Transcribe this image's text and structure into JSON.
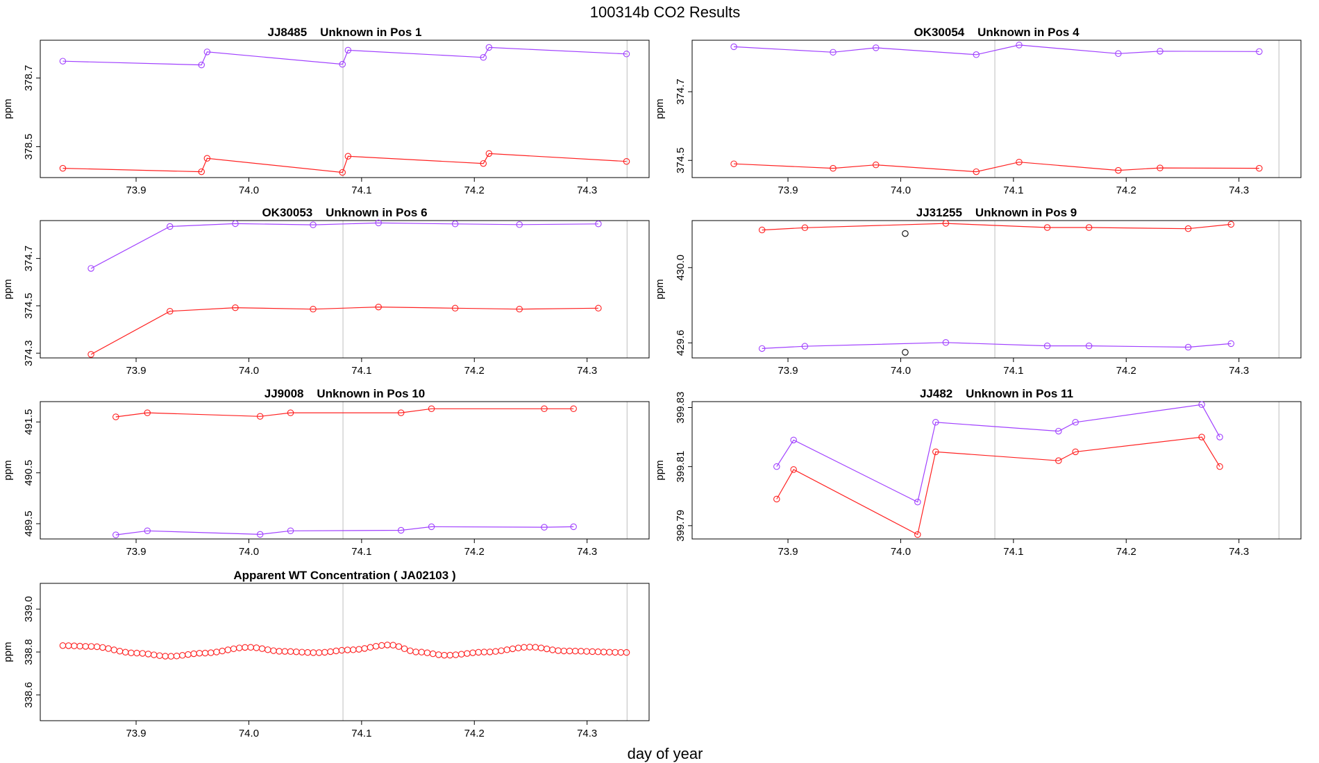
{
  "figure": {
    "title": "100314b  CO2 Results",
    "xlabel": "day of year",
    "colors": {
      "series_purple": "#a040ff",
      "series_red": "#ff2020",
      "outlier": "#000000",
      "ref_line": "#c8c8c8"
    }
  },
  "chart_data": [
    {
      "type": "line",
      "id": "p1",
      "title": "JJ8485    Unknown in Pos 1",
      "ylabel": "ppm",
      "xlim": [
        73.815,
        74.355
      ],
      "ylim": [
        378.41,
        378.81
      ],
      "xticks": [
        "73.9",
        "74.0",
        "74.1",
        "74.2",
        "74.3"
      ],
      "yticks": [
        "378.5",
        "378.7"
      ],
      "vlines": [
        74.0835,
        74.3355
      ],
      "series": [
        {
          "name": "purple",
          "color": "#a040ff",
          "x": [
            73.835,
            73.958,
            73.963,
            74.083,
            74.088,
            74.208,
            74.213,
            74.335
          ],
          "y": [
            378.749,
            378.738,
            378.776,
            378.74,
            378.781,
            378.76,
            378.789,
            378.77
          ]
        },
        {
          "name": "red",
          "color": "#ff2020",
          "x": [
            73.835,
            73.958,
            73.963,
            74.083,
            74.088,
            74.208,
            74.213,
            74.335
          ],
          "y": [
            378.437,
            378.427,
            378.466,
            378.425,
            378.472,
            378.451,
            378.48,
            378.457
          ]
        }
      ]
    },
    {
      "type": "line",
      "id": "p2",
      "title": "OK30054    Unknown in Pos 4",
      "ylabel": "ppm",
      "xlim": [
        73.815,
        74.355
      ],
      "ylim": [
        374.45,
        374.85
      ],
      "xticks": [
        "73.9",
        "74.0",
        "74.1",
        "74.2",
        "74.3"
      ],
      "yticks": [
        "374.5",
        "374.7"
      ],
      "vlines": [
        74.0835,
        74.3355
      ],
      "series": [
        {
          "name": "purple",
          "color": "#a040ff",
          "x": [
            73.852,
            73.94,
            73.978,
            74.067,
            74.105,
            74.193,
            74.23,
            74.318
          ],
          "y": [
            374.831,
            374.815,
            374.828,
            374.808,
            374.836,
            374.811,
            374.818,
            374.817
          ]
        },
        {
          "name": "red",
          "color": "#ff2020",
          "x": [
            73.852,
            73.94,
            73.978,
            74.067,
            74.105,
            74.193,
            74.23,
            74.318
          ],
          "y": [
            374.49,
            374.477,
            374.487,
            374.467,
            374.495,
            374.471,
            374.478,
            374.477
          ]
        }
      ]
    },
    {
      "type": "line",
      "id": "p3",
      "title": "OK30053    Unknown in Pos 6",
      "ylabel": "ppm",
      "xlim": [
        73.815,
        74.355
      ],
      "ylim": [
        374.28,
        374.86
      ],
      "xticks": [
        "73.9",
        "74.0",
        "74.1",
        "74.2",
        "74.3"
      ],
      "yticks": [
        "374.3",
        "374.5",
        "374.7"
      ],
      "vlines": [
        74.0835,
        74.3355
      ],
      "series": [
        {
          "name": "purple",
          "color": "#a040ff",
          "x": [
            73.86,
            73.93,
            73.988,
            74.057,
            74.115,
            74.183,
            74.24,
            74.31
          ],
          "y": [
            374.658,
            374.835,
            374.847,
            374.842,
            374.85,
            374.846,
            374.843,
            374.846
          ]
        },
        {
          "name": "red",
          "color": "#ff2020",
          "x": [
            73.86,
            73.93,
            73.988,
            74.057,
            74.115,
            74.183,
            74.24,
            74.31
          ],
          "y": [
            374.295,
            374.477,
            374.492,
            374.486,
            374.495,
            374.49,
            374.486,
            374.49
          ]
        }
      ]
    },
    {
      "type": "line",
      "id": "p4",
      "title": "JJ31255    Unknown in Pos 9",
      "ylabel": "ppm",
      "xlim": [
        73.815,
        74.355
      ],
      "ylim": [
        429.52,
        430.25
      ],
      "xticks": [
        "73.9",
        "74.0",
        "74.1",
        "74.2",
        "74.3"
      ],
      "yticks": [
        "429.6",
        "430.0"
      ],
      "vlines": [
        74.0835,
        74.3355
      ],
      "series": [
        {
          "name": "red",
          "color": "#ff2020",
          "x": [
            73.877,
            73.915,
            74.04,
            74.13,
            74.167,
            74.255,
            74.293
          ],
          "y": [
            430.2,
            430.212,
            430.235,
            430.213,
            430.213,
            430.207,
            430.23
          ]
        },
        {
          "name": "purple",
          "color": "#a040ff",
          "x": [
            73.877,
            73.915,
            74.04,
            74.13,
            74.167,
            74.255,
            74.293
          ],
          "y": [
            429.57,
            429.582,
            429.602,
            429.584,
            429.584,
            429.577,
            429.596
          ]
        }
      ],
      "outliers": [
        {
          "x": 74.004,
          "y": 430.181
        },
        {
          "x": 74.004,
          "y": 429.55
        }
      ]
    },
    {
      "type": "line",
      "id": "p5",
      "title": "JJ9008    Unknown in Pos 10",
      "ylabel": "ppm",
      "xlim": [
        73.815,
        74.355
      ],
      "ylim": [
        489.2,
        491.9
      ],
      "xticks": [
        "73.9",
        "74.0",
        "74.1",
        "74.2",
        "74.3"
      ],
      "yticks": [
        "489.5",
        "490.5",
        "491.5"
      ],
      "vlines": [
        74.0835,
        74.3355
      ],
      "series": [
        {
          "name": "red",
          "color": "#ff2020",
          "x": [
            73.882,
            73.91,
            74.01,
            74.037,
            74.135,
            74.162,
            74.262,
            74.288
          ],
          "y": [
            491.6,
            491.68,
            491.61,
            491.68,
            491.68,
            491.76,
            491.76,
            491.76
          ]
        },
        {
          "name": "purple",
          "color": "#a040ff",
          "x": [
            73.882,
            73.91,
            74.01,
            74.037,
            74.135,
            74.162,
            74.262,
            74.288
          ],
          "y": [
            489.28,
            489.36,
            489.29,
            489.36,
            489.37,
            489.44,
            489.43,
            489.44
          ]
        }
      ]
    },
    {
      "type": "line",
      "id": "p6",
      "title": "JJ482    Unknown in Pos 11",
      "ylabel": "ppm",
      "xlim": [
        73.815,
        74.355
      ],
      "ylim": [
        399.7855,
        399.832
      ],
      "xticks": [
        "73.9",
        "74.0",
        "74.1",
        "74.2",
        "74.3"
      ],
      "yticks": [
        "399.79",
        "399.81",
        "399.83"
      ],
      "vlines": [
        74.0835,
        74.3355
      ],
      "series": [
        {
          "name": "purple",
          "color": "#a040ff",
          "x": [
            73.89,
            73.905,
            74.015,
            74.031,
            74.14,
            74.155,
            74.267,
            74.283
          ],
          "y": [
            399.81,
            399.819,
            399.798,
            399.825,
            399.822,
            399.825,
            399.831,
            399.82
          ]
        },
        {
          "name": "red",
          "color": "#ff2020",
          "x": [
            73.89,
            73.905,
            74.015,
            74.031,
            74.14,
            74.155,
            74.267,
            74.283
          ],
          "y": [
            399.799,
            399.809,
            399.787,
            399.815,
            399.812,
            399.815,
            399.82,
            399.81
          ]
        }
      ]
    },
    {
      "type": "scatter",
      "id": "p7",
      "title": "Apparent WT Concentration ( JA02103 )",
      "ylabel": "ppm",
      "xlim": [
        73.815,
        74.355
      ],
      "ylim": [
        338.48,
        339.12
      ],
      "xticks": [
        "73.9",
        "74.0",
        "74.1",
        "74.2",
        "74.3"
      ],
      "yticks": [
        "338.6",
        "338.8",
        "339.0"
      ],
      "vlines": [
        74.0835,
        74.3355
      ],
      "wave": {
        "x_start": 73.835,
        "x_end": 74.335,
        "count": 100,
        "color": "#ff2020",
        "knots_x": [
          73.835,
          73.86,
          73.9,
          73.93,
          73.96,
          74.0,
          74.03,
          74.06,
          74.09,
          74.125,
          74.15,
          74.175,
          74.21,
          74.25,
          74.28,
          74.335
        ],
        "knots_y": [
          338.83,
          338.826,
          338.795,
          338.78,
          338.795,
          338.822,
          338.803,
          338.797,
          338.81,
          338.833,
          338.8,
          338.785,
          338.8,
          338.823,
          338.805,
          338.798
        ]
      }
    }
  ]
}
